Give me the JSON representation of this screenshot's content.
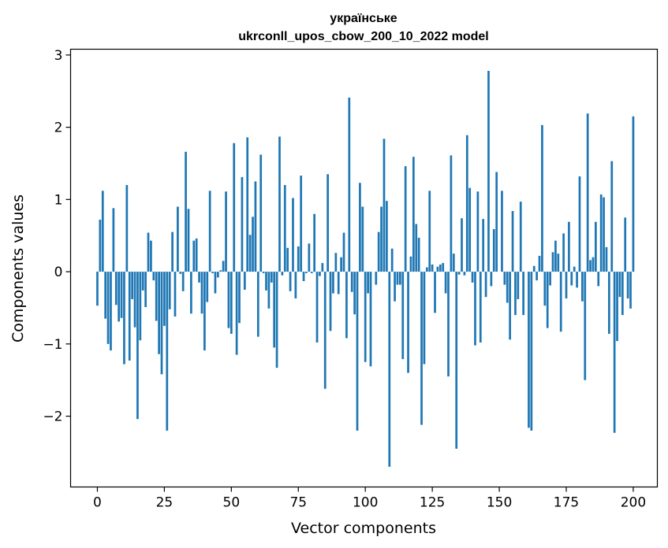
{
  "chart_data": {
    "type": "bar",
    "title": [
      "українське",
      "ukrconll_upos_cbow_200_10_2022 model"
    ],
    "xlabel": "Vector components",
    "ylabel": "Components values",
    "xlim": [
      -10,
      209
    ],
    "ylim": [
      -2.98,
      3.08
    ],
    "xticks": [
      0,
      25,
      50,
      75,
      100,
      125,
      150,
      175,
      200
    ],
    "yticks": [
      -2,
      -1,
      0,
      1,
      2,
      3
    ],
    "ytick_labels": [
      "−2",
      "−1",
      "0",
      "1",
      "2",
      "3"
    ],
    "bar_color": "#1f77b4",
    "grid": false,
    "values": [
      -0.47,
      0.72,
      1.12,
      -0.65,
      -1.0,
      -1.09,
      0.88,
      -0.46,
      -0.69,
      -0.64,
      -1.28,
      1.2,
      -1.23,
      -0.38,
      -0.77,
      -2.04,
      -0.95,
      -0.26,
      -0.49,
      0.54,
      0.43,
      -0.12,
      -0.68,
      -1.14,
      -1.42,
      -0.75,
      -2.2,
      -0.52,
      0.55,
      -0.62,
      0.9,
      -0.03,
      -0.27,
      1.66,
      0.87,
      -0.58,
      0.43,
      0.46,
      -0.15,
      -0.58,
      -1.09,
      -0.42,
      1.12,
      -0.02,
      -0.3,
      -0.08,
      0.02,
      0.15,
      1.11,
      -0.78,
      -0.86,
      1.78,
      -1.15,
      -0.71,
      1.31,
      -0.25,
      1.86,
      0.51,
      0.76,
      1.25,
      -0.9,
      1.62,
      -0.02,
      -0.26,
      -0.51,
      -0.15,
      -1.05,
      -1.33,
      1.87,
      -0.05,
      1.2,
      0.33,
      -0.27,
      1.02,
      -0.37,
      0.35,
      1.33,
      -0.13,
      -0.02,
      0.39,
      -0.02,
      0.8,
      -0.98,
      -0.06,
      0.12,
      -1.62,
      1.35,
      -0.82,
      -0.3,
      0.26,
      -0.31,
      0.2,
      0.54,
      -0.92,
      2.41,
      -0.28,
      -0.59,
      -2.2,
      1.23,
      0.9,
      -1.25,
      -0.3,
      -1.31,
      0.0,
      -0.18,
      0.55,
      0.9,
      1.84,
      0.98,
      -2.7,
      0.32,
      -0.41,
      -0.18,
      -0.18,
      -1.21,
      1.46,
      -1.4,
      0.21,
      1.59,
      0.66,
      0.47,
      -2.12,
      -1.28,
      0.06,
      1.12,
      0.1,
      -0.57,
      0.07,
      0.1,
      0.12,
      -0.3,
      -1.45,
      1.61,
      0.25,
      -2.45,
      -0.04,
      0.74,
      -0.05,
      1.89,
      1.16,
      -0.15,
      -1.02,
      1.11,
      -0.98,
      0.73,
      -0.35,
      2.78,
      -0.2,
      0.59,
      1.38,
      0.0,
      1.12,
      -0.18,
      -0.43,
      -0.94,
      0.84,
      -0.6,
      -0.38,
      0.97,
      -0.6,
      0.0,
      -2.16,
      -2.2,
      0.08,
      -0.12,
      0.22,
      2.03,
      -0.47,
      -0.78,
      -0.19,
      0.27,
      0.43,
      0.25,
      -0.83,
      0.53,
      -0.37,
      0.69,
      -0.19,
      0.07,
      -0.22,
      1.32,
      -0.41,
      -1.5,
      2.19,
      0.16,
      0.2,
      0.69,
      -0.2,
      1.07,
      1.03,
      0.34,
      -0.86,
      1.53,
      -2.23,
      -0.96,
      -0.35,
      -0.6,
      0.75,
      -0.37,
      -0.51,
      2.15
    ]
  }
}
